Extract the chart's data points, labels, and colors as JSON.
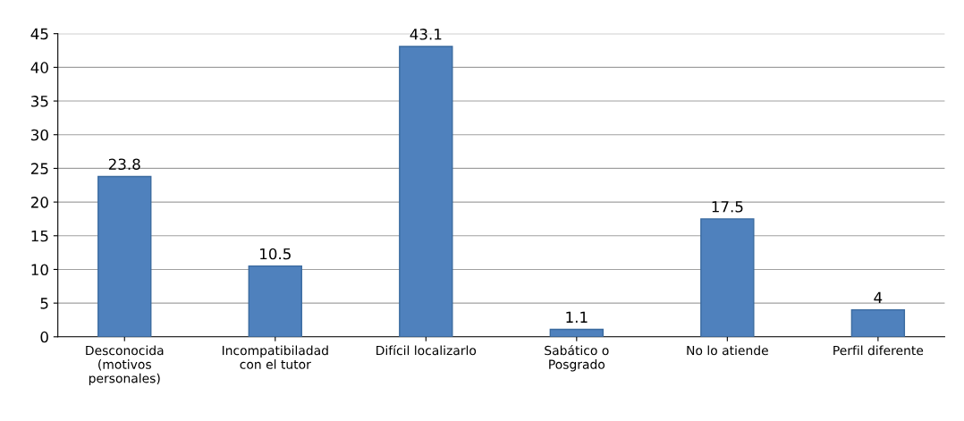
{
  "chart_data": {
    "type": "bar",
    "categories": [
      "Desconocida\n(motivos\npersonales)",
      "Incompatibiladad\ncon el tutor",
      "Difícil localizarlo",
      "Sabático o\nPosgrado",
      "No lo atiende",
      "Perfil diferente"
    ],
    "values": [
      23.8,
      10.5,
      43.1,
      1.1,
      17.5,
      4
    ],
    "color": "#4f81bd",
    "ylim": [
      0,
      45
    ],
    "yticks": [
      0,
      5,
      10,
      15,
      20,
      25,
      30,
      35,
      40,
      45
    ],
    "grid": "y",
    "data_labels": true
  }
}
